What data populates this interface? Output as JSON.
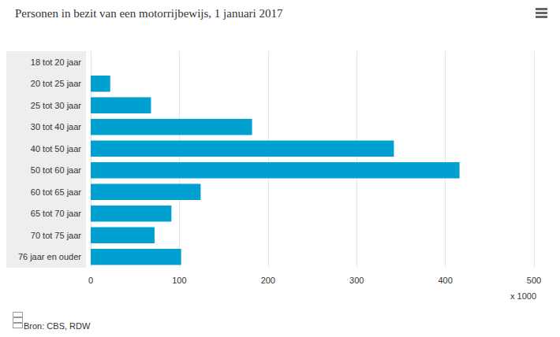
{
  "chart_data": {
    "type": "bar",
    "title": "Personen in bezit van een motorrijbewijs, 1 januari 2017",
    "xlabel": "x 1000",
    "annotations": [
      "Bron: CBS, RDW"
    ],
    "orientation": "horizontal",
    "categories": [
      "18 tot 20 jaar",
      "20 tot 25 jaar",
      "25 tot 30 jaar",
      "30 tot 40 jaar",
      "40 tot 50 jaar",
      "50 tot 60 jaar",
      "60 tot 65 jaar",
      "65 tot 70 jaar",
      "70 tot 75 jaar",
      "76 jaar en ouder"
    ],
    "values": [
      0,
      22,
      68,
      182,
      342,
      416,
      124,
      91,
      72,
      102
    ],
    "color": "#00a0d0",
    "xlim": [
      0,
      500
    ],
    "xticks": [
      0,
      100,
      200,
      300,
      400,
      500
    ],
    "grid": true
  }
}
